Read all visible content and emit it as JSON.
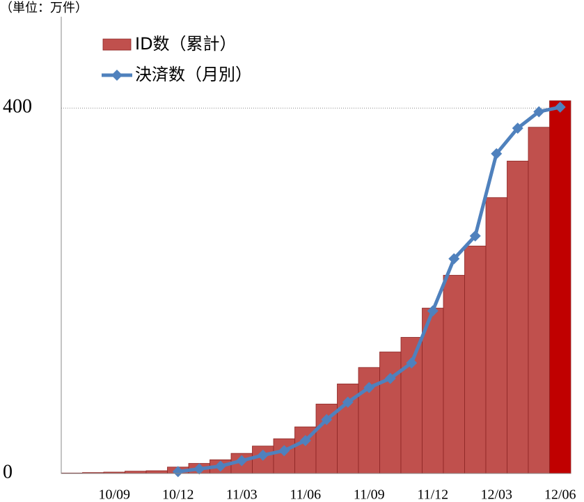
{
  "chart_data": {
    "type": "bar_line",
    "unit_label": "（単位：万件）",
    "categories": [
      "",
      "",
      "10/09",
      "",
      "",
      "10/12",
      "",
      "",
      "11/03",
      "",
      "",
      "11/06",
      "",
      "",
      "11/09",
      "",
      "",
      "11/12",
      "",
      "",
      "12/03",
      "",
      "",
      "12/06"
    ],
    "series": [
      {
        "name": "ID数（累計）",
        "kind": "bar",
        "color": "#c0504d",
        "colors": [
          "#c0504d",
          "#c0504d",
          "#c0504d",
          "#c0504d",
          "#c0504d",
          "#c0504d",
          "#c0504d",
          "#c0504d",
          "#c0504d",
          "#c0504d",
          "#c0504d",
          "#c0504d",
          "#c0504d",
          "#c0504d",
          "#c0504d",
          "#c0504d",
          "#c0504d",
          "#c0504d",
          "#c0504d",
          "#c0504d",
          "#c0504d",
          "#c0504d",
          "#c0504d",
          "#c00000"
        ],
        "values": [
          0.5,
          1,
          1.5,
          2.5,
          3,
          7,
          11,
          15,
          22,
          30,
          38,
          51,
          76,
          98,
          116,
          133,
          149,
          181,
          217,
          249,
          302,
          342,
          379,
          408
        ]
      },
      {
        "name": "決済数（月別）",
        "kind": "line",
        "color": "#4f81bd",
        "values": [
          null,
          null,
          null,
          null,
          null,
          2,
          5,
          8,
          14,
          20,
          25,
          36,
          59,
          78,
          94,
          104,
          121,
          178,
          235,
          260,
          350,
          378,
          396,
          401
        ]
      }
    ],
    "ylim": [
      0,
      500
    ],
    "yticks": [
      0,
      400
    ],
    "grid": true
  }
}
